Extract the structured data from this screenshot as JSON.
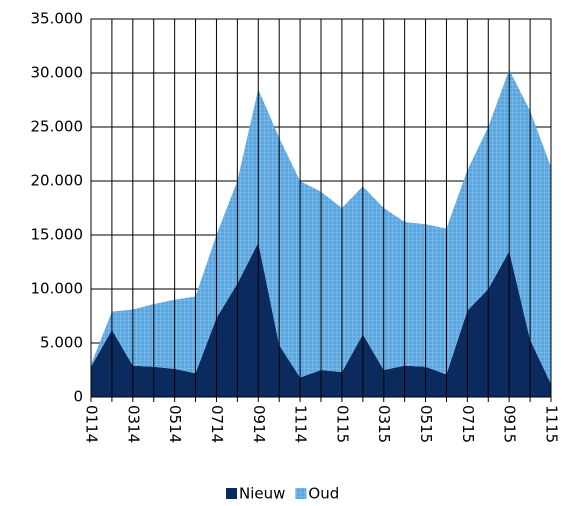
{
  "chart_data": {
    "type": "stacked_area",
    "categories": [
      "0114",
      null,
      "0314",
      null,
      "0514",
      null,
      "0714",
      null,
      "0914",
      null,
      "1114",
      null,
      "0115",
      null,
      "0315",
      null,
      "0515",
      null,
      "0715",
      null,
      "0915",
      null,
      "1115"
    ],
    "series": [
      {
        "name": "Nieuw",
        "color": "#0b2a5e",
        "values": [
          2800,
          6200,
          2900,
          2800,
          2600,
          2200,
          7300,
          10500,
          14300,
          4800,
          1800,
          2500,
          2300,
          5800,
          2500,
          2900,
          2800,
          2100,
          8000,
          10000,
          13500,
          5300,
          1200
        ]
      },
      {
        "name": "Oud",
        "color": "#5aa6e0",
        "values": [
          200,
          1700,
          5200,
          5800,
          6400,
          7100,
          7700,
          9500,
          14200,
          19200,
          18200,
          16500,
          15200,
          13700,
          15000,
          13300,
          13200,
          13500,
          13000,
          15000,
          16800,
          21200,
          20100
        ]
      }
    ],
    "ylim": [
      0,
      35000
    ],
    "yticks": [
      0,
      {
        "value": 5000,
        "label": "5.000"
      },
      {
        "value": 10000,
        "label": "10.000"
      },
      {
        "value": 15000,
        "label": "15.000"
      },
      {
        "value": 20000,
        "label": "20.000"
      },
      {
        "value": 25000,
        "label": "25.000"
      },
      {
        "value": 30000,
        "label": "30.000"
      },
      {
        "value": 35000,
        "label": "35.000"
      }
    ],
    "grid": true,
    "legend": "bottom"
  }
}
